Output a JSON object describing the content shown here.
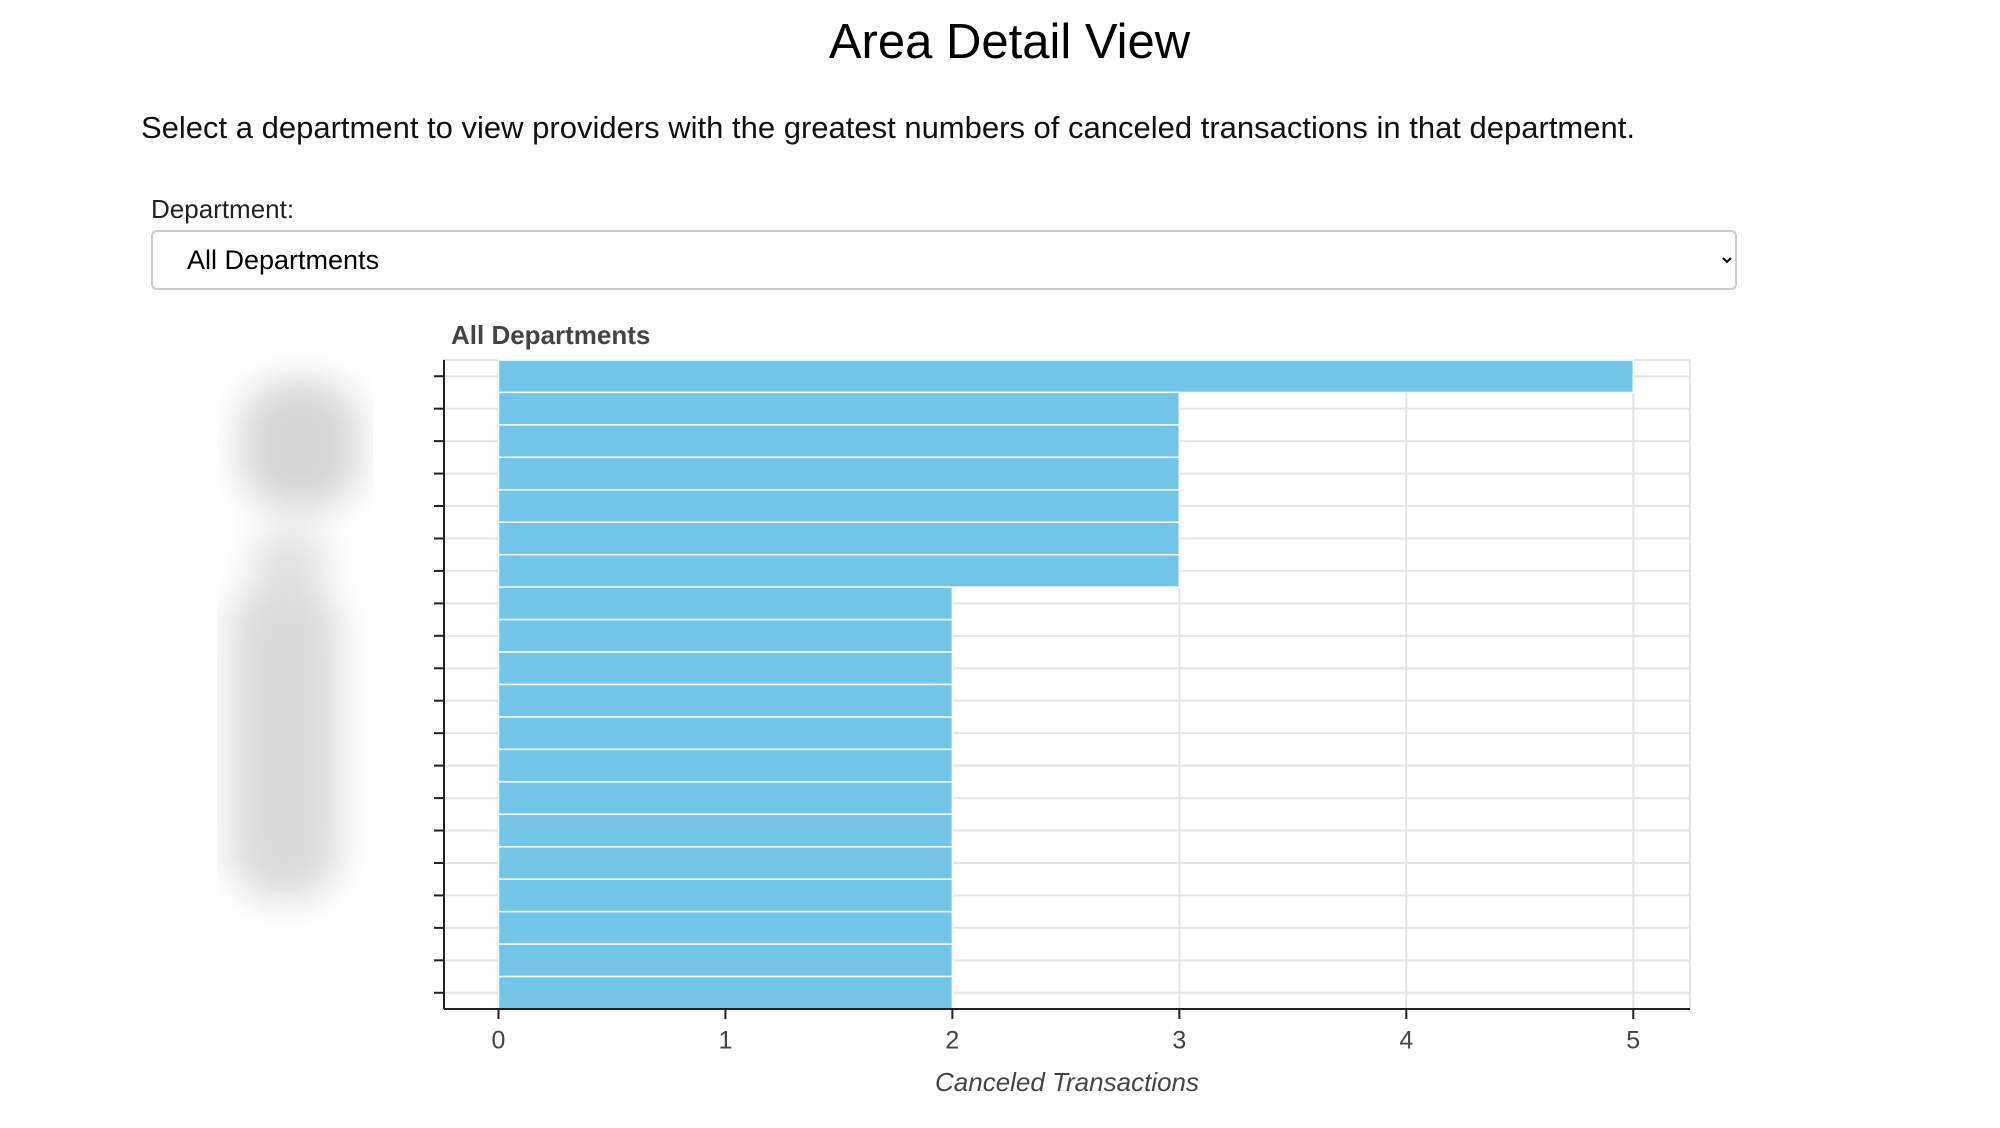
{
  "header": {
    "title": "Area Detail View",
    "description": "Select a department to view providers with the greatest numbers of canceled transactions in that department."
  },
  "filter": {
    "label": "Department:",
    "selected": "All Departments"
  },
  "chart_data": {
    "type": "bar",
    "orientation": "horizontal",
    "title": "All Departments",
    "categories": [
      null,
      null,
      null,
      null,
      null,
      null,
      null,
      null,
      null,
      null,
      null,
      null,
      null,
      null,
      null,
      null,
      null,
      null,
      null,
      null
    ],
    "values": [
      5,
      3,
      3,
      3,
      3,
      3,
      3,
      2,
      2,
      2,
      2,
      2,
      2,
      2,
      2,
      2,
      2,
      2,
      2,
      2
    ],
    "color": "#72c5e7",
    "xlabel": "Canceled Transactions",
    "xlim": [
      -0.24,
      5.25
    ],
    "xticks": [
      0,
      1,
      2,
      3,
      4,
      5
    ],
    "grid": true
  }
}
